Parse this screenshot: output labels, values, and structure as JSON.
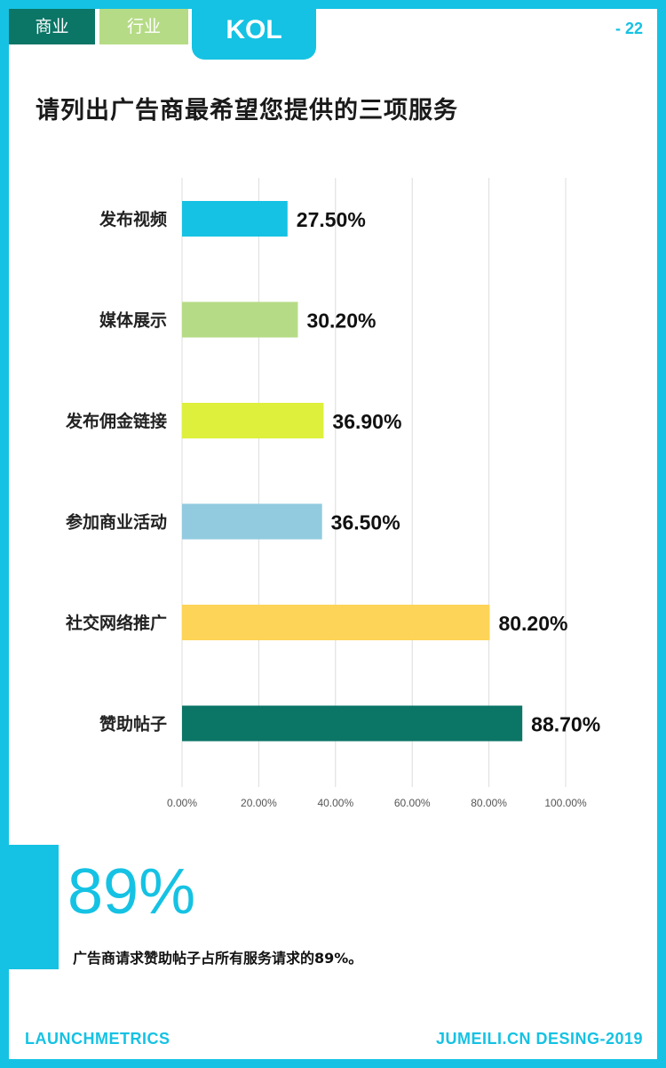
{
  "tabs": {
    "business": "商业",
    "industry": "行业",
    "kol": "KOL"
  },
  "page_number": "- 22",
  "highlight": {
    "big_number": "89%",
    "caption": "广告商请求赞助帖子占所有服务请求的89%。"
  },
  "footer": {
    "left": "LAUNCHMETRICS",
    "right": "JUMEILI.CN DESING-2019"
  },
  "chart_data": {
    "type": "bar",
    "orientation": "horizontal",
    "title": "请列出广告商最希望您提供的三项服务",
    "categories": [
      "发布视频",
      "媒体展示",
      "发布佣金链接",
      "参加商业活动",
      "社交网络推广",
      "赞助帖子"
    ],
    "values": [
      27.5,
      30.2,
      36.9,
      36.5,
      80.2,
      88.7
    ],
    "value_labels": [
      "27.50%",
      "30.20%",
      "36.90%",
      "36.50%",
      "80.20%",
      "88.70%"
    ],
    "colors": [
      "#15c2e3",
      "#b6db86",
      "#def03c",
      "#92cbdf",
      "#fdd457",
      "#0b7566"
    ],
    "xlim": [
      0,
      100
    ],
    "x_ticks": [
      0,
      20,
      40,
      60,
      80,
      100
    ],
    "x_tick_labels": [
      "0.00%",
      "20.00%",
      "40.00%",
      "60.00%",
      "80.00%",
      "100.00%"
    ],
    "grid": true,
    "legend": "none"
  }
}
